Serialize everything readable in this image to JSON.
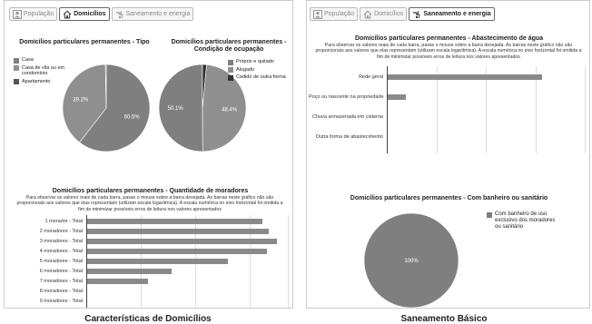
{
  "tabs_left": [
    {
      "label": "População",
      "icon": "population-icon",
      "active": false
    },
    {
      "label": "Domicílios",
      "icon": "house-icon",
      "active": true
    },
    {
      "label": "Saneamento e energia",
      "icon": "sanitation-icon",
      "active": false
    }
  ],
  "tabs_right": [
    {
      "label": "População",
      "icon": "population-icon",
      "active": false
    },
    {
      "label": "Domicílios",
      "icon": "house-icon",
      "active": false
    },
    {
      "label": "Saneamento e energia",
      "icon": "sanitation-icon",
      "active": true
    }
  ],
  "note": "Para observar os valores reais de cada barra, passe o mouse sobre a barra desejada. As barras neste gráfico não são proporcionais aos valores que elas representam (utilizam escala logarítmica). A escala numérica no eixo horizontal foi omitida a fim de minimizar possíveis erros de leitura nos valores apresentados",
  "captions": {
    "left": "Características de Domicílios",
    "right": "Saneamento Básico"
  },
  "chart_data": [
    {
      "type": "pie",
      "title": "Domicílios particulares permanentes - Tipo",
      "legend": [
        "Casa",
        "Casa de vila ou em condomínio",
        "Apartamento"
      ],
      "colors": [
        "#7f7f7f",
        "#8f8f8f",
        "#555555"
      ],
      "values": [
        60.5,
        39.2,
        0.3
      ],
      "labels": [
        "60.5%",
        "39.2%",
        ""
      ]
    },
    {
      "type": "pie",
      "title": "Domicílios particulares permanentes - Condição de ocupação",
      "legend": [
        "Próprio e quitado",
        "Alugado",
        "Cedido de outra forma"
      ],
      "colors": [
        "#7f7f7f",
        "#8f8f8f",
        "#333333"
      ],
      "values": [
        50.1,
        48.4,
        1.5
      ],
      "labels": [
        "50.1%",
        "48.4%",
        ""
      ]
    },
    {
      "type": "bar",
      "orientation": "horizontal",
      "title": "Domicílios particulares permanentes - Quantidade de moradores",
      "categories": [
        "1 morador - Total",
        "2 moradores - Total",
        "3 moradores - Total",
        "4 moradores - Total",
        "5 moradores - Total",
        "6 moradores - Total",
        "7 moradores - Total",
        "8 moradores - Total",
        "9 moradores - Total"
      ],
      "values": [
        0.87,
        0.9,
        0.94,
        0.89,
        0.7,
        0.42,
        0.3,
        0,
        0
      ],
      "scale": "logarithmic"
    },
    {
      "type": "bar",
      "orientation": "horizontal",
      "title": "Domicílios particulares permanentes - Abastecimento de água",
      "categories": [
        "Rede geral",
        "Poço ou nascente na propriedade",
        "Chuva armazenada em cisterna",
        "Outra forma de abastecimento"
      ],
      "values": [
        0.78,
        0.09,
        0,
        0
      ],
      "scale": "logarithmic"
    },
    {
      "type": "pie",
      "title": "Domicílios particulares permanentes - Com banheiro ou sanitário",
      "legend": [
        "Com banheiro de uso exclusivo dos moradores ou sanitário"
      ],
      "colors": [
        "#7f7f7f"
      ],
      "values": [
        100
      ],
      "labels": [
        "100%"
      ]
    }
  ]
}
